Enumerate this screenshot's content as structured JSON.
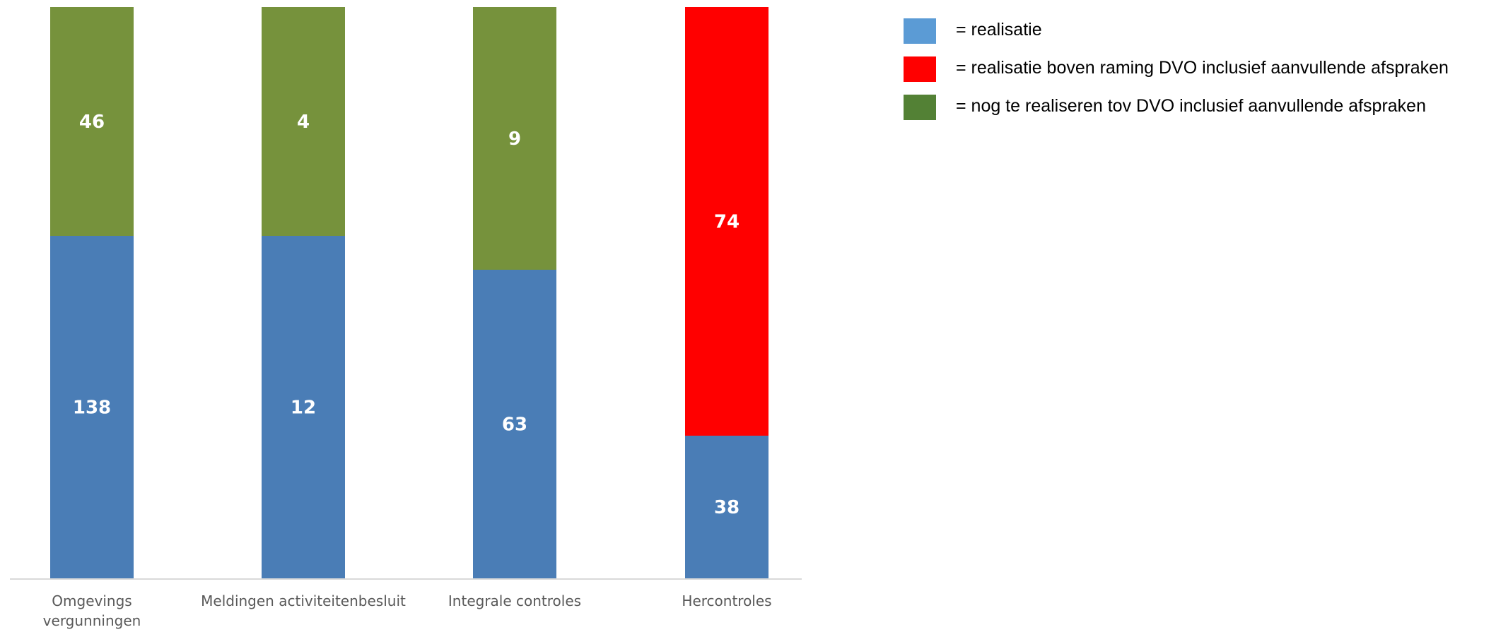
{
  "chart_data": {
    "type": "bar",
    "stacked": true,
    "categories": [
      [
        "Omgevings",
        "vergunningen"
      ],
      [
        "Meldingen activiteitenbesluit"
      ],
      [
        "Integrale controles"
      ],
      [
        "Hercontroles"
      ]
    ],
    "bars": [
      {
        "segments": [
          {
            "legend_index": 0,
            "value": 138
          },
          {
            "legend_index": 2,
            "value": 46
          }
        ]
      },
      {
        "segments": [
          {
            "legend_index": 0,
            "value": 12
          },
          {
            "legend_index": 2,
            "value": 4
          }
        ]
      },
      {
        "segments": [
          {
            "legend_index": 0,
            "value": 63
          },
          {
            "legend_index": 2,
            "value": 9
          }
        ]
      },
      {
        "segments": [
          {
            "legend_index": 0,
            "value": 38
          },
          {
            "legend_index": 1,
            "value": 74
          }
        ]
      }
    ],
    "segment_colors": [
      "#4a7db6",
      "#ff0000",
      "#76923c"
    ],
    "fill_ratio": [
      [
        0.6,
        0.4
      ],
      [
        0.6,
        0.4
      ],
      [
        0.54,
        0.46
      ],
      [
        0.25,
        0.75
      ]
    ],
    "legend": [
      {
        "text": "= realisatie",
        "color": "#5b9bd5"
      },
      {
        "text": "= realisatie boven raming DVO inclusief aanvullende afspraken",
        "color": "#ff0000"
      },
      {
        "text": "= nog te realiseren tov  DVO inclusief aanvullende afspraken",
        "color": "#538135"
      }
    ],
    "axis_line_color": "#d9d9d9",
    "grid": false,
    "y_axis_visible": false,
    "legend_position": "right"
  }
}
